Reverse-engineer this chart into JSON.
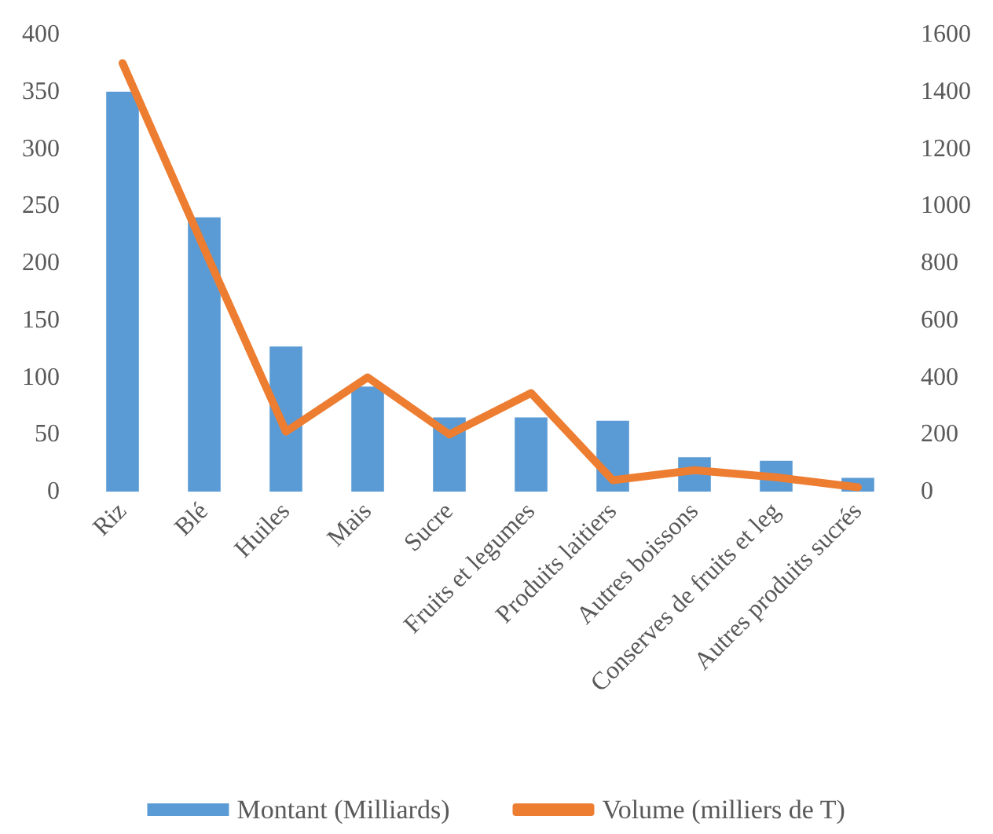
{
  "chart_data": {
    "type": "bar",
    "categories": [
      "Riz",
      "Blé",
      "Huiles",
      "Mais",
      "Sucre",
      "Fruits et legumes",
      "Produits laitiers",
      "Autres boissons",
      "Conserves de fruits et leg",
      "Autres produits sucrés"
    ],
    "series": [
      {
        "name": "Montant (Milliards)",
        "color": "#5b9bd5",
        "values": [
          350,
          240,
          127,
          92,
          65,
          65,
          62,
          30,
          27,
          12
        ]
      },
      {
        "name": "Volume (milliers de T)",
        "type": "line",
        "axis": "y2",
        "color": "#ed7d31",
        "values": [
          1500,
          850,
          210,
          400,
          200,
          345,
          40,
          75,
          50,
          15
        ]
      }
    ],
    "ylim": [
      0,
      400
    ],
    "yticks": [
      0,
      50,
      100,
      150,
      200,
      250,
      300,
      350,
      400
    ],
    "y2lim": [
      0,
      1600
    ],
    "y2ticks": [
      0,
      200,
      400,
      600,
      800,
      1000,
      1200,
      1400,
      1600
    ],
    "grid": false,
    "legend": "bottom",
    "marker": "none",
    "line_style": "solid"
  }
}
